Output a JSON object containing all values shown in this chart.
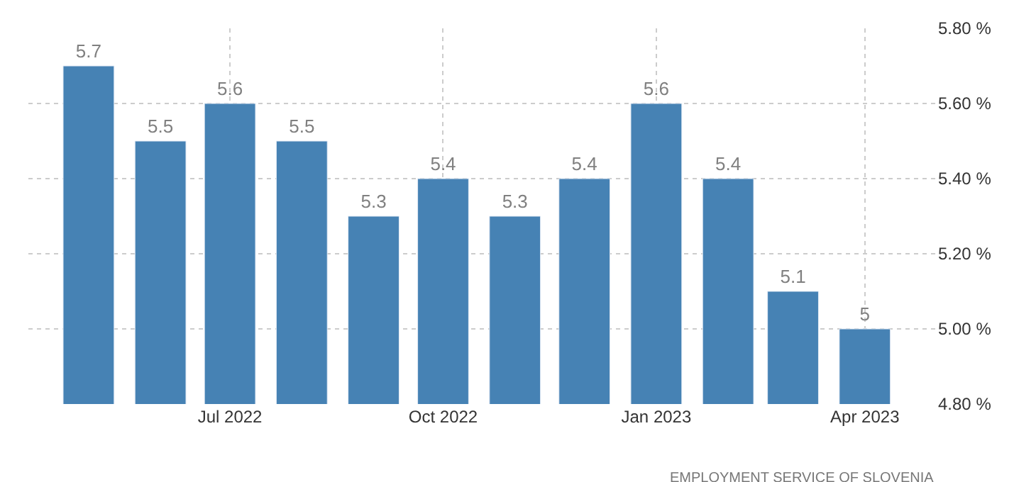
{
  "chart_data": {
    "type": "bar",
    "x": [
      "2022-05",
      "2022-06",
      "2022-07",
      "2022-08",
      "2022-09",
      "2022-10",
      "2022-11",
      "2022-12",
      "2023-01",
      "2023-02",
      "2023-03",
      "2023-04"
    ],
    "values": [
      5.7,
      5.5,
      5.6,
      5.5,
      5.3,
      5.4,
      5.3,
      5.4,
      5.6,
      5.4,
      5.1,
      5
    ],
    "color": "#4682b4",
    "data_labels": true,
    "xlim": [
      "2022-04-05",
      "2023-05-02"
    ],
    "xticks": [
      {
        "value": "2022-07",
        "label": "Jul 2022"
      },
      {
        "value": "2022-10",
        "label": "Oct 2022"
      },
      {
        "value": "2023-01",
        "label": "Jan 2023"
      },
      {
        "value": "2023-04",
        "label": "Apr 2023"
      }
    ],
    "ylim": [
      4.8,
      5.8
    ],
    "yticks": [
      {
        "value": 4.8,
        "label": "4.80 %"
      },
      {
        "value": 5.0,
        "label": "5.00 %"
      },
      {
        "value": 5.2,
        "label": "5.20 %"
      },
      {
        "value": 5.4,
        "label": "5.40 %"
      },
      {
        "value": 5.6,
        "label": "5.60 %"
      },
      {
        "value": 5.8,
        "label": "5.80 %"
      }
    ],
    "grid": true,
    "line_style": "dotted",
    "annotations": [
      "EMPLOYMENT SERVICE OF SLOVENIA"
    ]
  }
}
